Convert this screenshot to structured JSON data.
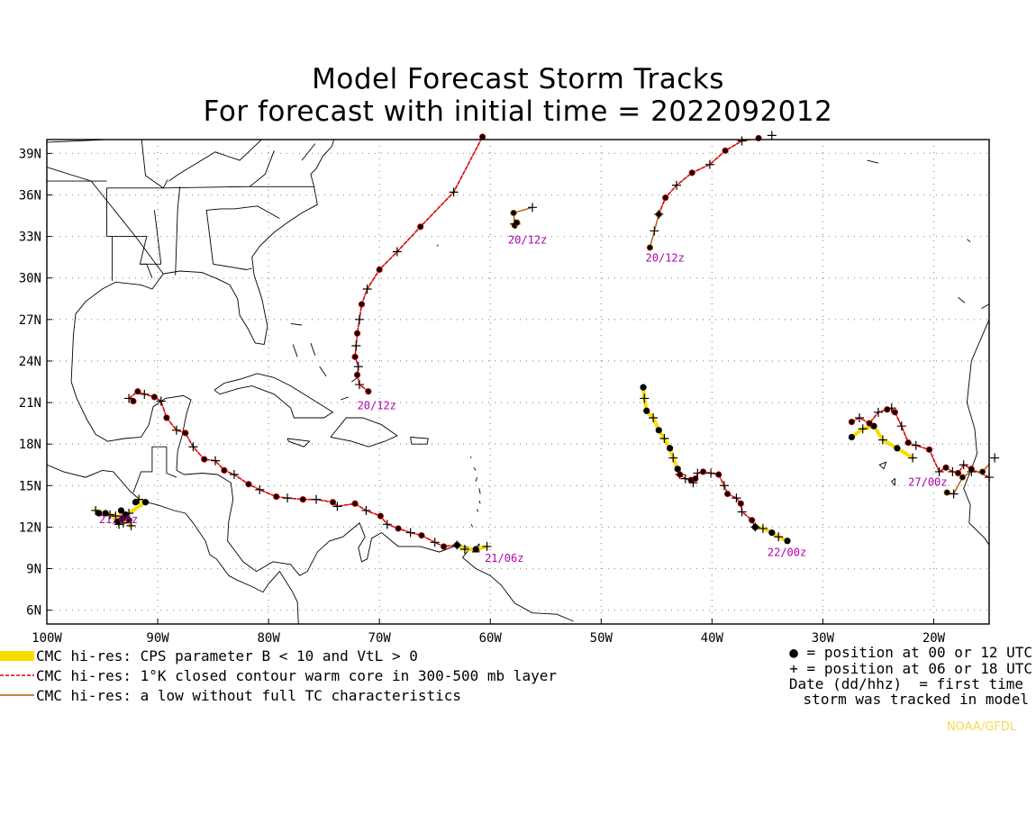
{
  "title": [
    "Model Forecast Storm Tracks",
    "For forecast with initial time = 2022092012"
  ],
  "lon_labels": [
    "100W",
    "90W",
    "80W",
    "70W",
    "60W",
    "50W",
    "40W",
    "30W",
    "20W"
  ],
  "lat_labels": [
    "39N",
    "36N",
    "33N",
    "30N",
    "27N",
    "24N",
    "21N",
    "18N",
    "15N",
    "12N",
    "9N",
    "6N"
  ],
  "legend": [
    {
      "label": "CMC hi-res: CPS parameter B < 10 and VtL > 0",
      "style": "band",
      "color": "#f8dc00"
    },
    {
      "label": "CMC hi-res: 1°K closed contour warm core in 300-500 mb layer",
      "style": "dashed",
      "color": "#e00000"
    },
    {
      "label": "CMC hi-res: a low without full TC characteristics",
      "style": "solid",
      "color": "#b05a00"
    }
  ],
  "key": [
    "● = position at 00 or 12 UTC",
    "+ = position at 06 or 18 UTC",
    "Date (dd/hhz)  = first time",
    "storm was tracked in model"
  ],
  "credit": "NOAA/GFDL",
  "colors": {
    "warm_core": "#e00000",
    "low": "#b05a00",
    "cps": "#f8dc00",
    "date_label": "#b000b0",
    "grid": "#999999"
  },
  "map_data": {
    "lon_range": [
      -100,
      -15
    ],
    "lat_range": [
      5,
      40
    ],
    "tracks": [
      {
        "label": "20/12z",
        "label_at": [
          -72,
          20.5
        ],
        "segments": [
          {
            "style": "warm_core",
            "points": [
              [
                -71.0,
                21.8
              ],
              [
                -71.8,
                22.3
              ],
              [
                -72.0,
                23.0
              ],
              [
                -71.9,
                23.6
              ],
              [
                -72.2,
                24.3
              ],
              [
                -72.1,
                25.1
              ],
              [
                -72.0,
                26.0
              ],
              [
                -71.8,
                27.0
              ],
              [
                -71.6,
                28.1
              ],
              [
                -71.1,
                29.2
              ],
              [
                -70.0,
                30.6
              ],
              [
                -68.4,
                31.9
              ],
              [
                -66.3,
                33.7
              ],
              [
                -63.3,
                36.2
              ],
              [
                -60.7,
                40.2
              ]
            ]
          }
        ]
      },
      {
        "label": "20/12z",
        "label_at": [
          -58.4,
          32.5
        ],
        "segments": [
          {
            "style": "low",
            "points": [
              [
                -57.8,
                33.8
              ],
              [
                -57.7,
                33.9
              ],
              [
                -57.6,
                34.0
              ],
              [
                -57.8,
                33.9
              ],
              [
                -57.9,
                34.7
              ],
              [
                -56.2,
                35.1
              ]
            ]
          }
        ]
      },
      {
        "label": "20/12z",
        "label_at": [
          -46.0,
          31.2
        ],
        "segments": [
          {
            "style": "low",
            "points": [
              [
                -45.6,
                32.2
              ],
              [
                -45.2,
                33.4
              ],
              [
                -44.8,
                34.6
              ]
            ]
          },
          {
            "style": "warm_core",
            "points": [
              [
                -44.8,
                34.6
              ],
              [
                -44.2,
                35.8
              ],
              [
                -43.2,
                36.7
              ],
              [
                -41.8,
                37.6
              ],
              [
                -40.2,
                38.2
              ],
              [
                -38.8,
                39.2
              ],
              [
                -37.3,
                39.9
              ],
              [
                -35.8,
                40.1
              ],
              [
                -34.6,
                40.3
              ]
            ]
          }
        ]
      },
      {
        "label": "21/06z",
        "label_at": [
          -60.5,
          9.5
        ],
        "segments": [
          {
            "style": "warm_core",
            "points": [
              [
                -92.2,
                21.1
              ],
              [
                -92.6,
                21.3
              ],
              [
                -91.8,
                21.8
              ],
              [
                -91.2,
                21.6
              ],
              [
                -90.3,
                21.4
              ],
              [
                -89.7,
                21.1
              ],
              [
                -89.2,
                19.9
              ],
              [
                -88.3,
                19.0
              ],
              [
                -87.5,
                18.8
              ],
              [
                -86.8,
                17.8
              ],
              [
                -85.8,
                16.9
              ],
              [
                -84.8,
                16.8
              ],
              [
                -84.0,
                16.1
              ],
              [
                -83.1,
                15.8
              ],
              [
                -81.8,
                15.1
              ],
              [
                -80.8,
                14.7
              ],
              [
                -79.3,
                14.2
              ],
              [
                -78.3,
                14.1
              ],
              [
                -76.9,
                14.0
              ],
              [
                -75.7,
                14.0
              ],
              [
                -74.2,
                13.8
              ],
              [
                -73.8,
                13.5
              ],
              [
                -72.2,
                13.7
              ],
              [
                -71.2,
                13.2
              ],
              [
                -69.9,
                12.8
              ],
              [
                -69.3,
                12.2
              ],
              [
                -68.3,
                11.9
              ],
              [
                -67.2,
                11.6
              ],
              [
                -66.2,
                11.4
              ],
              [
                -65.0,
                10.9
              ],
              [
                -64.2,
                10.6
              ],
              [
                -63.0,
                10.7
              ]
            ]
          },
          {
            "style": "cps",
            "points": [
              [
                -63.0,
                10.7
              ],
              [
                -62.3,
                10.4
              ],
              [
                -61.3,
                10.4
              ],
              [
                -60.3,
                10.6
              ]
            ]
          }
        ]
      },
      {
        "label": "21/06z",
        "label_at": [
          -95.3,
          12.3
        ],
        "segments": [
          {
            "style": "cps",
            "points": [
              [
                -92.0,
                13.8
              ],
              [
                -91.7,
                14.0
              ],
              [
                -91.1,
                13.8
              ],
              [
                -92.6,
                13.0
              ],
              [
                -93.2,
                12.6
              ],
              [
                -93.8,
                12.8
              ],
              [
                -94.7,
                13.0
              ],
              [
                -95.6,
                13.2
              ],
              [
                -95.3,
                13.0
              ],
              [
                -94.3,
                12.9
              ],
              [
                -93.6,
                12.4
              ],
              [
                -93.1,
                12.3
              ],
              [
                -92.6,
                12.5
              ],
              [
                -92.4,
                12.1
              ],
              [
                -92.9,
                12.9
              ],
              [
                -93.5,
                12.2
              ],
              [
                -93.3,
                13.2
              ],
              [
                -92.8,
                12.6
              ]
            ]
          }
        ]
      },
      {
        "label": "22/00z",
        "label_at": [
          -35.0,
          9.9
        ],
        "segments": [
          {
            "style": "cps",
            "points": [
              [
                -46.2,
                22.1
              ],
              [
                -46.1,
                21.3
              ],
              [
                -45.9,
                20.4
              ],
              [
                -45.3,
                19.9
              ],
              [
                -44.8,
                19.0
              ],
              [
                -44.3,
                18.4
              ],
              [
                -43.8,
                17.7
              ],
              [
                -43.5,
                17.0
              ],
              [
                -43.1,
                16.2
              ],
              [
                -42.9,
                15.8
              ]
            ]
          },
          {
            "style": "warm_core",
            "points": [
              [
                -42.9,
                15.8
              ],
              [
                -42.4,
                15.5
              ],
              [
                -41.9,
                15.4
              ],
              [
                -41.7,
                15.2
              ],
              [
                -41.5,
                15.5
              ],
              [
                -41.3,
                15.9
              ],
              [
                -40.8,
                16.0
              ],
              [
                -40.1,
                15.9
              ],
              [
                -39.4,
                15.8
              ],
              [
                -38.9,
                15.0
              ],
              [
                -38.6,
                14.4
              ],
              [
                -37.8,
                14.1
              ],
              [
                -37.4,
                13.7
              ],
              [
                -37.3,
                13.1
              ],
              [
                -36.4,
                12.5
              ],
              [
                -36.1,
                12.0
              ]
            ]
          },
          {
            "style": "cps",
            "points": [
              [
                -36.1,
                12.0
              ],
              [
                -35.4,
                11.9
              ],
              [
                -34.6,
                11.6
              ],
              [
                -34.0,
                11.3
              ],
              [
                -33.2,
                11.0
              ]
            ]
          }
        ]
      },
      {
        "label": "27/00z",
        "label_at": [
          -22.3,
          15.0
        ],
        "segments": [
          {
            "style": "cps",
            "points": [
              [
                -27.4,
                18.5
              ],
              [
                -26.4,
                19.1
              ],
              [
                -25.4,
                19.3
              ],
              [
                -24.6,
                18.3
              ],
              [
                -23.3,
                17.7
              ],
              [
                -21.9,
                17.0
              ]
            ]
          },
          {
            "style": "warm_core",
            "points": [
              [
                -27.4,
                19.6
              ],
              [
                -26.7,
                19.9
              ],
              [
                -25.8,
                19.5
              ],
              [
                -25.0,
                20.3
              ],
              [
                -24.2,
                20.5
              ],
              [
                -23.8,
                20.6
              ],
              [
                -23.5,
                20.3
              ],
              [
                -22.9,
                19.3
              ],
              [
                -22.3,
                18.1
              ],
              [
                -21.6,
                17.9
              ],
              [
                -20.4,
                17.6
              ],
              [
                -19.5,
                16.0
              ],
              [
                -18.9,
                16.3
              ],
              [
                -18.3,
                16.0
              ],
              [
                -17.8,
                15.9
              ],
              [
                -17.3,
                16.5
              ],
              [
                -16.6,
                16.2
              ],
              [
                -15.0,
                15.6
              ]
            ]
          },
          {
            "style": "low",
            "points": [
              [
                -18.8,
                14.5
              ],
              [
                -18.2,
                14.4
              ],
              [
                -17.4,
                15.6
              ],
              [
                -16.6,
                16.0
              ],
              [
                -15.6,
                16.0
              ],
              [
                -14.5,
                17.0
              ]
            ]
          }
        ]
      }
    ]
  }
}
